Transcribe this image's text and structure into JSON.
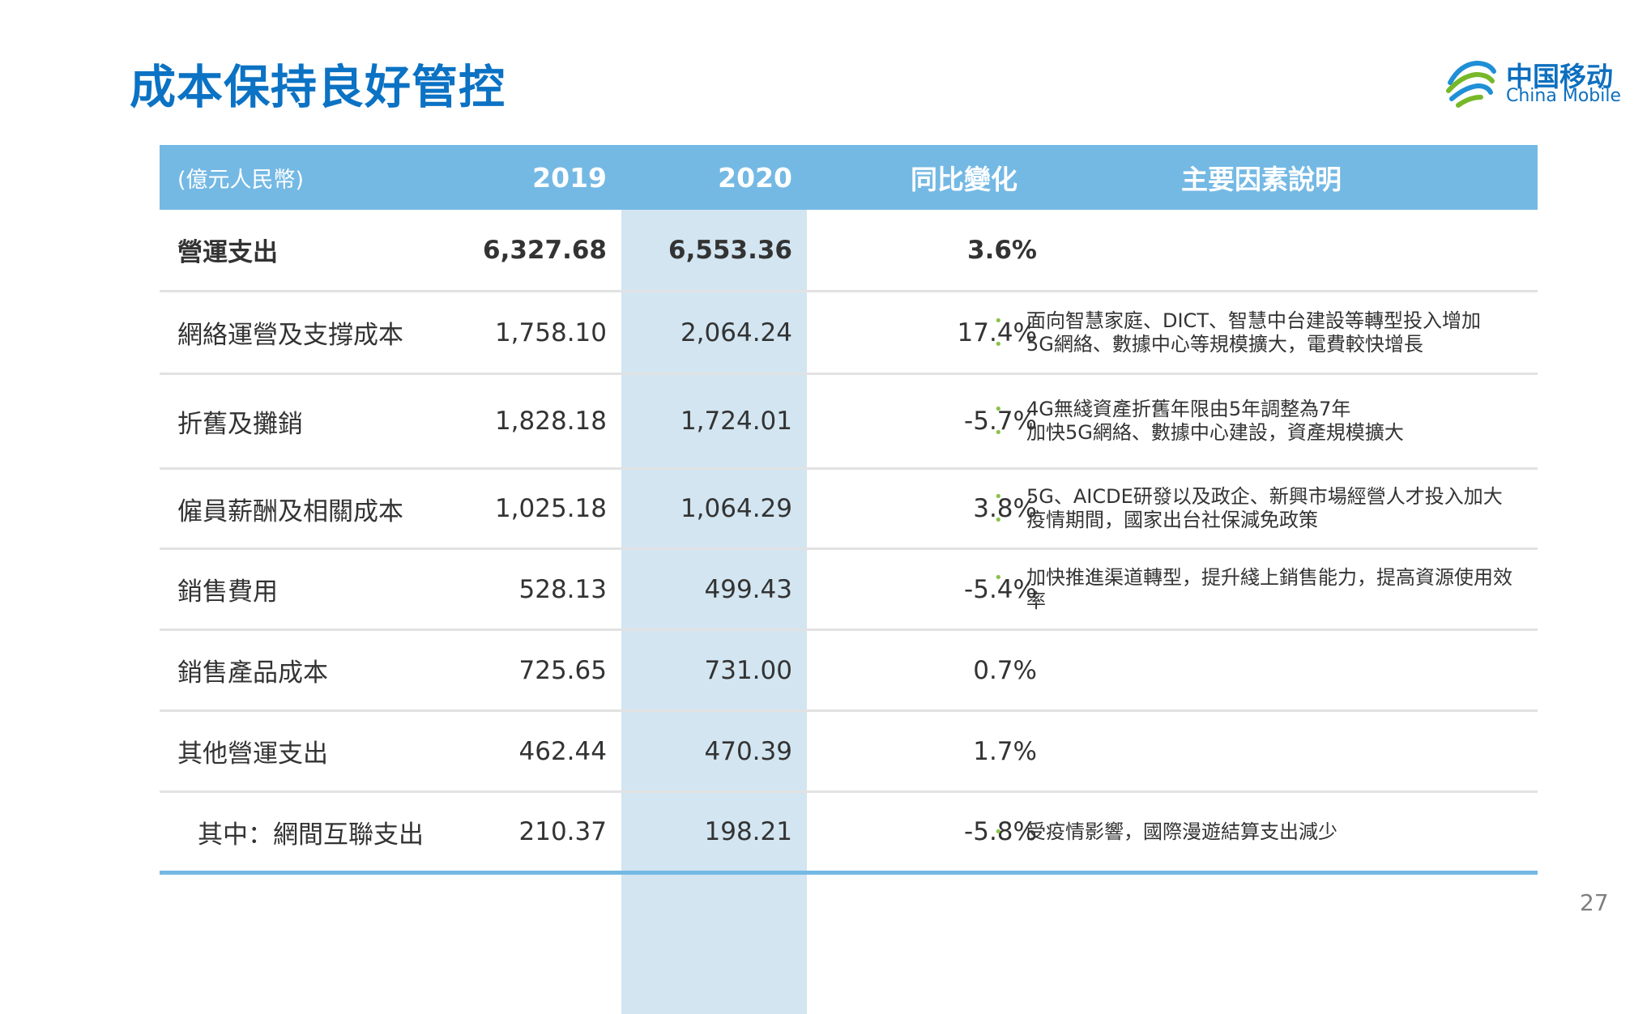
{
  "title": "成本保持良好管控",
  "logo": {
    "cn": "中国移动",
    "en": "China Mobile",
    "icon": "china-mobile-logo"
  },
  "page_number": "27",
  "header": {
    "unit": "(億元人民幣)",
    "y2019": "2019",
    "y2020": "2020",
    "yoy": "同比變化",
    "notes": "主要因素說明"
  },
  "rows": [
    {
      "label": "營運支出",
      "v2019": "6,327.68",
      "v2020": "6,553.36",
      "yoy": "3.6%",
      "notes": []
    },
    {
      "label": "網絡運營及支撐成本",
      "v2019": "1,758.10",
      "v2020": "2,064.24",
      "yoy": "17.4%",
      "notes": [
        "面向智慧家庭、DICT、智慧中台建設等轉型投入增加",
        "5G網絡、數據中心等規模擴大，電費較快增長"
      ]
    },
    {
      "label": "折舊及攤銷",
      "v2019": "1,828.18",
      "v2020": "1,724.01",
      "yoy": "-5.7%",
      "notes": [
        "4G無綫資產折舊年限由5年調整為7年",
        "加快5G網絡、數據中心建設，資產規模擴大"
      ]
    },
    {
      "label": "僱員薪酬及相關成本",
      "v2019": "1,025.18",
      "v2020": "1,064.29",
      "yoy": "3.8%",
      "notes": [
        "5G、AICDE研發以及政企、新興市場經營人才投入加大",
        "疫情期間，國家出台社保減免政策"
      ]
    },
    {
      "label": "銷售費用",
      "v2019": "528.13",
      "v2020": "499.43",
      "yoy": "-5.4%",
      "notes": [
        "加快推進渠道轉型，提升綫上銷售能力，提高資源使用效率"
      ]
    },
    {
      "label": "銷售產品成本",
      "v2019": "725.65",
      "v2020": "731.00",
      "yoy": "0.7%",
      "notes": []
    },
    {
      "label": "其他營運支出",
      "v2019": "462.44",
      "v2020": "470.39",
      "yoy": "1.7%",
      "notes": []
    },
    {
      "label": "其中：網間互聯支出",
      "v2019": "210.37",
      "v2020": "198.21",
      "yoy": "-5.8%",
      "notes": [
        "受疫情影響，國際漫遊結算支出減少"
      ]
    }
  ],
  "colors": {
    "title": "#0b72c4",
    "header_bg": "#74b9e4",
    "highlight_col": "#d2e5f1",
    "bullet": "#8bc34a"
  }
}
